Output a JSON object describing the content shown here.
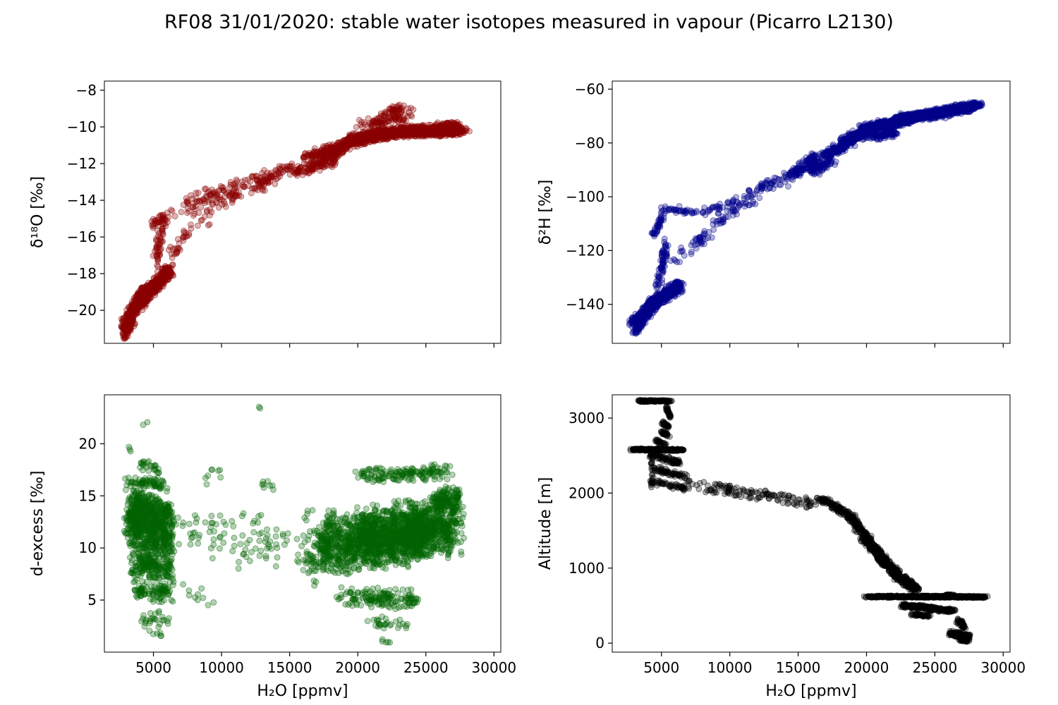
{
  "title": "RF08 31/01/2020: stable water isotopes measured in vapour (Picarro L2130)",
  "background_color": "#ffffff",
  "chart_data": {
    "type": "scatter",
    "layout": "2x2 grid of scatter subplots sharing the same H2O x-axis",
    "segment_format": "[x_start, y_start, x_end, y_end, n_points, x_jitter, y_jitter]",
    "x_axis": {
      "label": "H₂O [ppmv]",
      "ticks": [
        5000,
        10000,
        15000,
        20000,
        25000,
        30000
      ],
      "range": [
        1400,
        30500
      ]
    },
    "charts": [
      {
        "id": "delta18O",
        "ylabel": "δ¹⁸O [‰]",
        "xlabel": "",
        "x_tick_labels": false,
        "color": "#8b0000",
        "ylim": [
          -21.8,
          -7.5
        ],
        "yticks": [
          -20,
          -18,
          -16,
          -14,
          -12,
          -10,
          -8
        ],
        "segments": [
          [
            2800,
            -20.9,
            4300,
            -19.0,
            260,
            350,
            0.55
          ],
          [
            2900,
            -21.4,
            3500,
            -20.5,
            70,
            220,
            0.35
          ],
          [
            3900,
            -19.6,
            6200,
            -17.8,
            430,
            360,
            0.5
          ],
          [
            5200,
            -17.4,
            5800,
            -14.8,
            60,
            330,
            0.4
          ],
          [
            4900,
            -15.3,
            6300,
            -14.9,
            25,
            320,
            0.3
          ],
          [
            6300,
            -16.9,
            7800,
            -15.6,
            30,
            420,
            0.5
          ],
          [
            6500,
            -14.6,
            9500,
            -13.6,
            45,
            520,
            0.6
          ],
          [
            8000,
            -15.2,
            11500,
            -13.4,
            45,
            700,
            0.6
          ],
          [
            9000,
            -13.7,
            13500,
            -12.6,
            60,
            700,
            0.5
          ],
          [
            12500,
            -13.3,
            15500,
            -12.0,
            75,
            620,
            0.45
          ],
          [
            15500,
            -12.5,
            18500,
            -11.6,
            130,
            620,
            0.4
          ],
          [
            16200,
            -11.7,
            18200,
            -11.2,
            85,
            520,
            0.35
          ],
          [
            18000,
            -11.4,
            19800,
            -10.7,
            170,
            520,
            0.4
          ],
          [
            19500,
            -10.75,
            22000,
            -10.35,
            280,
            700,
            0.35
          ],
          [
            21500,
            -10.4,
            25000,
            -10.15,
            430,
            900,
            0.33
          ],
          [
            24500,
            -10.3,
            27600,
            -10.2,
            430,
            820,
            0.3
          ],
          [
            20500,
            -9.9,
            23500,
            -9.4,
            90,
            820,
            0.35
          ],
          [
            21800,
            -9.2,
            23600,
            -8.95,
            40,
            620,
            0.25
          ],
          [
            25800,
            -10.0,
            27400,
            -9.9,
            70,
            520,
            0.25
          ]
        ]
      },
      {
        "id": "delta2H",
        "ylabel": "δ²H [‰]",
        "xlabel": "",
        "x_tick_labels": false,
        "color": "#00008b",
        "ylim": [
          -154.5,
          -57
        ],
        "yticks": [
          -140,
          -120,
          -100,
          -80,
          -60
        ],
        "segments": [
          [
            2900,
            -147,
            4400,
            -141,
            250,
            350,
            2.6
          ],
          [
            3000,
            -150.5,
            3700,
            -146,
            60,
            230,
            1.8
          ],
          [
            3900,
            -141,
            6400,
            -133,
            420,
            380,
            2.6
          ],
          [
            4700,
            -133,
            5400,
            -117,
            70,
            330,
            2.3
          ],
          [
            4400,
            -114,
            5200,
            -106,
            40,
            270,
            2.0
          ],
          [
            4900,
            -104.5,
            8000,
            -106,
            40,
            520,
            1.8
          ],
          [
            8000,
            -106,
            10800,
            -101,
            32,
            520,
            2.0
          ],
          [
            5800,
            -124,
            8500,
            -113,
            42,
            620,
            2.6
          ],
          [
            9000,
            -110,
            12000,
            -99,
            48,
            620,
            2.6
          ],
          [
            11500,
            -99,
            14500,
            -92,
            58,
            620,
            2.5
          ],
          [
            14500,
            -92,
            16500,
            -85,
            115,
            520,
            2.3
          ],
          [
            15800,
            -90.5,
            17500,
            -87,
            72,
            520,
            2.2
          ],
          [
            17000,
            -85,
            19000,
            -79,
            185,
            520,
            2.0
          ],
          [
            18500,
            -79,
            20500,
            -75,
            270,
            620,
            1.9
          ],
          [
            20000,
            -74.5,
            23000,
            -71.5,
            430,
            820,
            1.8
          ],
          [
            22500,
            -71,
            25500,
            -69,
            430,
            820,
            1.7
          ],
          [
            25000,
            -69,
            27800,
            -66.5,
            390,
            720,
            1.6
          ],
          [
            26500,
            -67,
            28300,
            -65.5,
            95,
            520,
            1.3
          ],
          [
            20500,
            -78,
            22200,
            -76,
            85,
            620,
            1.5
          ]
        ]
      },
      {
        "id": "dexcess",
        "ylabel": "d-excess [‰]",
        "xlabel": "H₂O [ppmv]",
        "x_tick_labels": true,
        "color": "#006400",
        "ylim": [
          0,
          24.7
        ],
        "yticks": [
          5,
          10,
          15,
          20
        ],
        "segments": [
          [
            3100,
            12.5,
            6400,
            11.0,
            540,
            430,
            2.7
          ],
          [
            3300,
            14.6,
            6200,
            13.5,
            185,
            400,
            1.4
          ],
          [
            3400,
            8.5,
            6300,
            8.0,
            185,
            400,
            1.4
          ],
          [
            3600,
            6.0,
            6300,
            5.6,
            95,
            380,
            1.1
          ],
          [
            3200,
            16.3,
            5800,
            16.0,
            70,
            350,
            0.8
          ],
          [
            4000,
            18.1,
            5500,
            17.6,
            25,
            350,
            0.7
          ],
          [
            3250,
            19.6,
            3550,
            19.5,
            3,
            140,
            0.4
          ],
          [
            4300,
            21.9,
            4500,
            22.1,
            2,
            110,
            0.3
          ],
          [
            4200,
            3.3,
            6100,
            3.0,
            26,
            420,
            0.9
          ],
          [
            4800,
            1.8,
            5600,
            1.5,
            6,
            260,
            0.5
          ],
          [
            7000,
            11.2,
            17000,
            10.5,
            115,
            1250,
            3.4
          ],
          [
            8500,
            16.5,
            10000,
            17.3,
            8,
            420,
            0.8
          ],
          [
            12750,
            23.4,
            12850,
            23.4,
            2,
            80,
            0.2
          ],
          [
            13000,
            16.2,
            14600,
            15.8,
            8,
            420,
            0.8
          ],
          [
            7200,
            6.1,
            9200,
            5.2,
            10,
            420,
            1.0
          ],
          [
            16500,
            8.5,
            18200,
            12.0,
            95,
            520,
            2.6
          ],
          [
            17500,
            10.0,
            21000,
            10.8,
            440,
            920,
            3.2
          ],
          [
            20500,
            10.8,
            24500,
            11.6,
            880,
            1120,
            3.3
          ],
          [
            24000,
            11.5,
            27200,
            12.1,
            540,
            920,
            3.0
          ],
          [
            20500,
            16.9,
            26500,
            17.4,
            155,
            1020,
            0.9
          ],
          [
            19000,
            5.3,
            24500,
            5.0,
            150,
            1020,
            1.1
          ],
          [
            21000,
            2.9,
            23600,
            2.5,
            28,
            720,
            0.8
          ],
          [
            21800,
            1.1,
            22600,
            0.9,
            5,
            310,
            0.3
          ],
          [
            25500,
            14.6,
            27400,
            14.9,
            125,
            620,
            1.3
          ]
        ]
      },
      {
        "id": "altitude",
        "ylabel": "Altitude [m]",
        "xlabel": "H₂O [ppmv]",
        "x_tick_labels": true,
        "color": "#000000",
        "ylim": [
          -120,
          3310
        ],
        "yticks": [
          0,
          1000,
          2000,
          3000
        ],
        "segments": [
          [
            3400,
            3230,
            5600,
            3225,
            140,
            210,
            14
          ],
          [
            5350,
            3150,
            5650,
            3000,
            25,
            120,
            26
          ],
          [
            5000,
            2950,
            5600,
            2870,
            30,
            150,
            26
          ],
          [
            4950,
            2830,
            5550,
            2760,
            25,
            150,
            26
          ],
          [
            4600,
            2700,
            5300,
            2640,
            25,
            150,
            26
          ],
          [
            2850,
            2580,
            6600,
            2575,
            240,
            260,
            16
          ],
          [
            4200,
            2520,
            6400,
            2400,
            75,
            310,
            46
          ],
          [
            4400,
            2330,
            6700,
            2220,
            62,
            360,
            52
          ],
          [
            4300,
            2150,
            6900,
            2050,
            52,
            360,
            46
          ],
          [
            4200,
            2600,
            4350,
            2100,
            26,
            130,
            42
          ],
          [
            6500,
            2160,
            16800,
            1880,
            78,
            620,
            42
          ],
          [
            7500,
            2060,
            16300,
            1820,
            56,
            620,
            42
          ],
          [
            16500,
            1950,
            19000,
            1680,
            115,
            410,
            42
          ],
          [
            18800,
            1700,
            20200,
            1380,
            105,
            360,
            46
          ],
          [
            19800,
            1400,
            21300,
            1120,
            112,
            360,
            42
          ],
          [
            20800,
            1150,
            22300,
            930,
            122,
            360,
            42
          ],
          [
            21800,
            950,
            23600,
            700,
            132,
            410,
            42
          ],
          [
            19200,
            1530,
            21000,
            1200,
            62,
            360,
            46
          ],
          [
            20500,
            1250,
            22000,
            980,
            62,
            360,
            42
          ],
          [
            22500,
            900,
            23800,
            720,
            62,
            360,
            36
          ],
          [
            20200,
            620,
            24500,
            618,
            270,
            620,
            15
          ],
          [
            24000,
            620,
            28650,
            615,
            330,
            620,
            14
          ],
          [
            22600,
            500,
            24800,
            470,
            145,
            460,
            30
          ],
          [
            24500,
            460,
            26500,
            430,
            125,
            460,
            28
          ],
          [
            23500,
            380,
            24500,
            360,
            42,
            310,
            20
          ],
          [
            26200,
            130,
            27500,
            80,
            135,
            310,
            42
          ],
          [
            26700,
            300,
            27200,
            200,
            42,
            210,
            36
          ],
          [
            26900,
            45,
            27400,
            30,
            42,
            210,
            18
          ],
          [
            25800,
            640,
            26400,
            630,
            40,
            210,
            15
          ]
        ]
      }
    ]
  }
}
